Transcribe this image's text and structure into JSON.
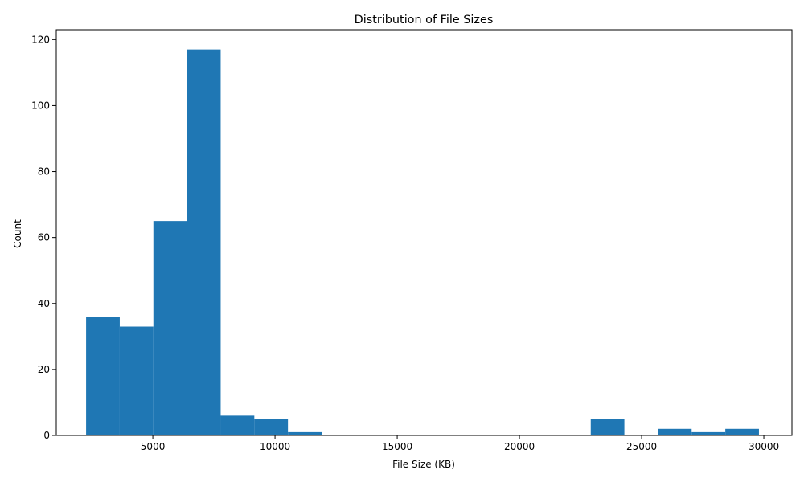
{
  "chart_data": {
    "type": "bar",
    "title": "Distribution of File Sizes",
    "xlabel": "File Size (KB)",
    "ylabel": "Count",
    "xlim": [
      1050,
      31150
    ],
    "ylim": [
      0,
      123
    ],
    "x_ticks": [
      5000,
      10000,
      15000,
      20000,
      25000,
      30000
    ],
    "y_ticks": [
      0,
      20,
      40,
      60,
      80,
      100,
      120
    ],
    "grid": false,
    "legend": "none",
    "bar_color": "#1f77b4",
    "bins": [
      {
        "start": 2270,
        "end": 3647,
        "count": 36
      },
      {
        "start": 3647,
        "end": 5023,
        "count": 33
      },
      {
        "start": 5023,
        "end": 6400,
        "count": 65
      },
      {
        "start": 6400,
        "end": 7776,
        "count": 117
      },
      {
        "start": 7776,
        "end": 9153,
        "count": 6
      },
      {
        "start": 9153,
        "end": 10529,
        "count": 5
      },
      {
        "start": 10529,
        "end": 11906,
        "count": 1
      },
      {
        "start": 11906,
        "end": 13282,
        "count": 0
      },
      {
        "start": 13282,
        "end": 14659,
        "count": 0
      },
      {
        "start": 14659,
        "end": 16035,
        "count": 0
      },
      {
        "start": 16035,
        "end": 17412,
        "count": 0
      },
      {
        "start": 17412,
        "end": 18788,
        "count": 0
      },
      {
        "start": 18788,
        "end": 20165,
        "count": 0
      },
      {
        "start": 20165,
        "end": 21541,
        "count": 0
      },
      {
        "start": 21541,
        "end": 22918,
        "count": 0
      },
      {
        "start": 22918,
        "end": 24294,
        "count": 5
      },
      {
        "start": 24294,
        "end": 25671,
        "count": 0
      },
      {
        "start": 25671,
        "end": 27047,
        "count": 2
      },
      {
        "start": 27047,
        "end": 28424,
        "count": 1
      },
      {
        "start": 28424,
        "end": 29800,
        "count": 2
      }
    ]
  }
}
